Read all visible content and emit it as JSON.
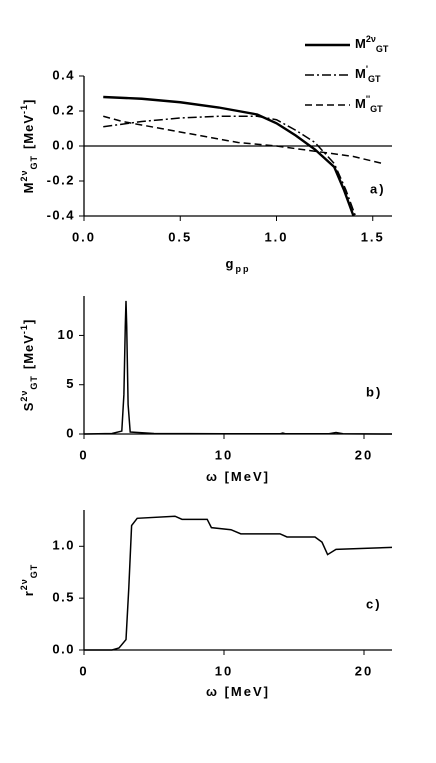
{
  "chart_data": [
    {
      "type": "line",
      "xlabel": {
        "main": "g",
        "sub": "pp"
      },
      "ylabel": {
        "main": "M",
        "sup": "2ν",
        "sub": "GT",
        "unit": "[MeV",
        "unit_sup": "-1",
        "unit_end": "]"
      },
      "panel_label": "a)",
      "xlim": [
        0,
        1.6
      ],
      "ylim": [
        -0.4,
        0.4
      ],
      "xticks": [
        {
          "value": 0,
          "label": "0.0"
        },
        0.5,
        {
          "value": 1,
          "label": "1.0"
        },
        1.5
      ],
      "yticks": [
        -0.4,
        -0.2,
        {
          "value": 0,
          "label": "0.0"
        },
        0.2,
        0.4
      ],
      "hline": 0,
      "legend": "upper right",
      "series": [
        {
          "name": {
            "main": "M",
            "sup": "2ν",
            "sub": "GT"
          },
          "color": "#000000",
          "dash": "solid",
          "x": [
            0.1,
            0.3,
            0.5,
            0.7,
            0.9,
            1.0,
            1.1,
            1.2,
            1.3,
            1.35,
            1.4
          ],
          "values": [
            0.28,
            0.27,
            0.25,
            0.22,
            0.18,
            0.13,
            0.06,
            -0.02,
            -0.12,
            -0.25,
            -0.4
          ]
        },
        {
          "name": {
            "main": "M",
            "sup": "'",
            "sub": "GT"
          },
          "color": "#000000",
          "dash": "dashdot",
          "x": [
            0.1,
            0.3,
            0.5,
            0.7,
            0.9,
            1.0,
            1.1,
            1.2,
            1.3,
            1.36,
            1.41
          ],
          "values": [
            0.11,
            0.14,
            0.16,
            0.17,
            0.17,
            0.15,
            0.09,
            0.02,
            -0.1,
            -0.25,
            -0.4
          ]
        },
        {
          "name": {
            "main": "M",
            "sup": "''",
            "sub": "GT"
          },
          "color": "#000000",
          "dash": "dashed",
          "x": [
            0.1,
            0.2,
            0.4,
            0.6,
            0.8,
            1.0,
            1.2,
            1.4,
            1.55
          ],
          "values": [
            0.17,
            0.14,
            0.1,
            0.06,
            0.02,
            0.0,
            -0.03,
            -0.06,
            -0.1
          ]
        }
      ]
    },
    {
      "type": "line",
      "xlabel": {
        "main": "ω [MeV]"
      },
      "ylabel": {
        "main": "S",
        "sup": "2ν",
        "sub": "GT",
        "unit": "[MeV",
        "unit_sup": "-1",
        "unit_end": "]"
      },
      "panel_label": "b)",
      "xlim": [
        0,
        22
      ],
      "ylim": [
        0,
        14
      ],
      "xticks": [
        0,
        10,
        20
      ],
      "yticks": [
        0,
        5,
        10
      ],
      "series": [
        {
          "color": "#000000",
          "dash": "solid",
          "x": [
            0,
            2,
            2.7,
            2.85,
            2.95,
            3.0,
            3.05,
            3.15,
            3.3,
            5,
            10,
            14,
            14.2,
            14.4,
            17.5,
            18,
            18.5,
            22
          ],
          "values": [
            0,
            0.05,
            0.3,
            4,
            11,
            13.5,
            11,
            3,
            0.2,
            0.05,
            0.02,
            0.02,
            0.1,
            0.02,
            0.02,
            0.15,
            0.02,
            0
          ]
        }
      ]
    },
    {
      "type": "line",
      "xlabel": {
        "main": "ω [MeV]"
      },
      "ylabel": {
        "main": "r",
        "sup": "2ν",
        "sub": "GT"
      },
      "panel_label": "c)",
      "xlim": [
        0,
        22
      ],
      "ylim": [
        0,
        1.35
      ],
      "xticks": [
        0,
        10,
        20
      ],
      "yticks": [
        {
          "value": 0,
          "label": "0.0"
        },
        0.5,
        {
          "value": 1,
          "label": "1.0"
        }
      ],
      "series": [
        {
          "color": "#000000",
          "dash": "solid",
          "x": [
            0,
            2,
            2.5,
            3.0,
            3.2,
            3.4,
            3.8,
            6.5,
            7,
            8.8,
            9.1,
            10.5,
            11.2,
            14,
            14.5,
            16.5,
            17,
            17.4,
            18,
            20,
            22
          ],
          "values": [
            0,
            0,
            0.02,
            0.1,
            0.6,
            1.2,
            1.27,
            1.29,
            1.26,
            1.26,
            1.18,
            1.16,
            1.12,
            1.12,
            1.09,
            1.09,
            1.04,
            0.92,
            0.97,
            0.98,
            0.99
          ]
        }
      ]
    }
  ]
}
